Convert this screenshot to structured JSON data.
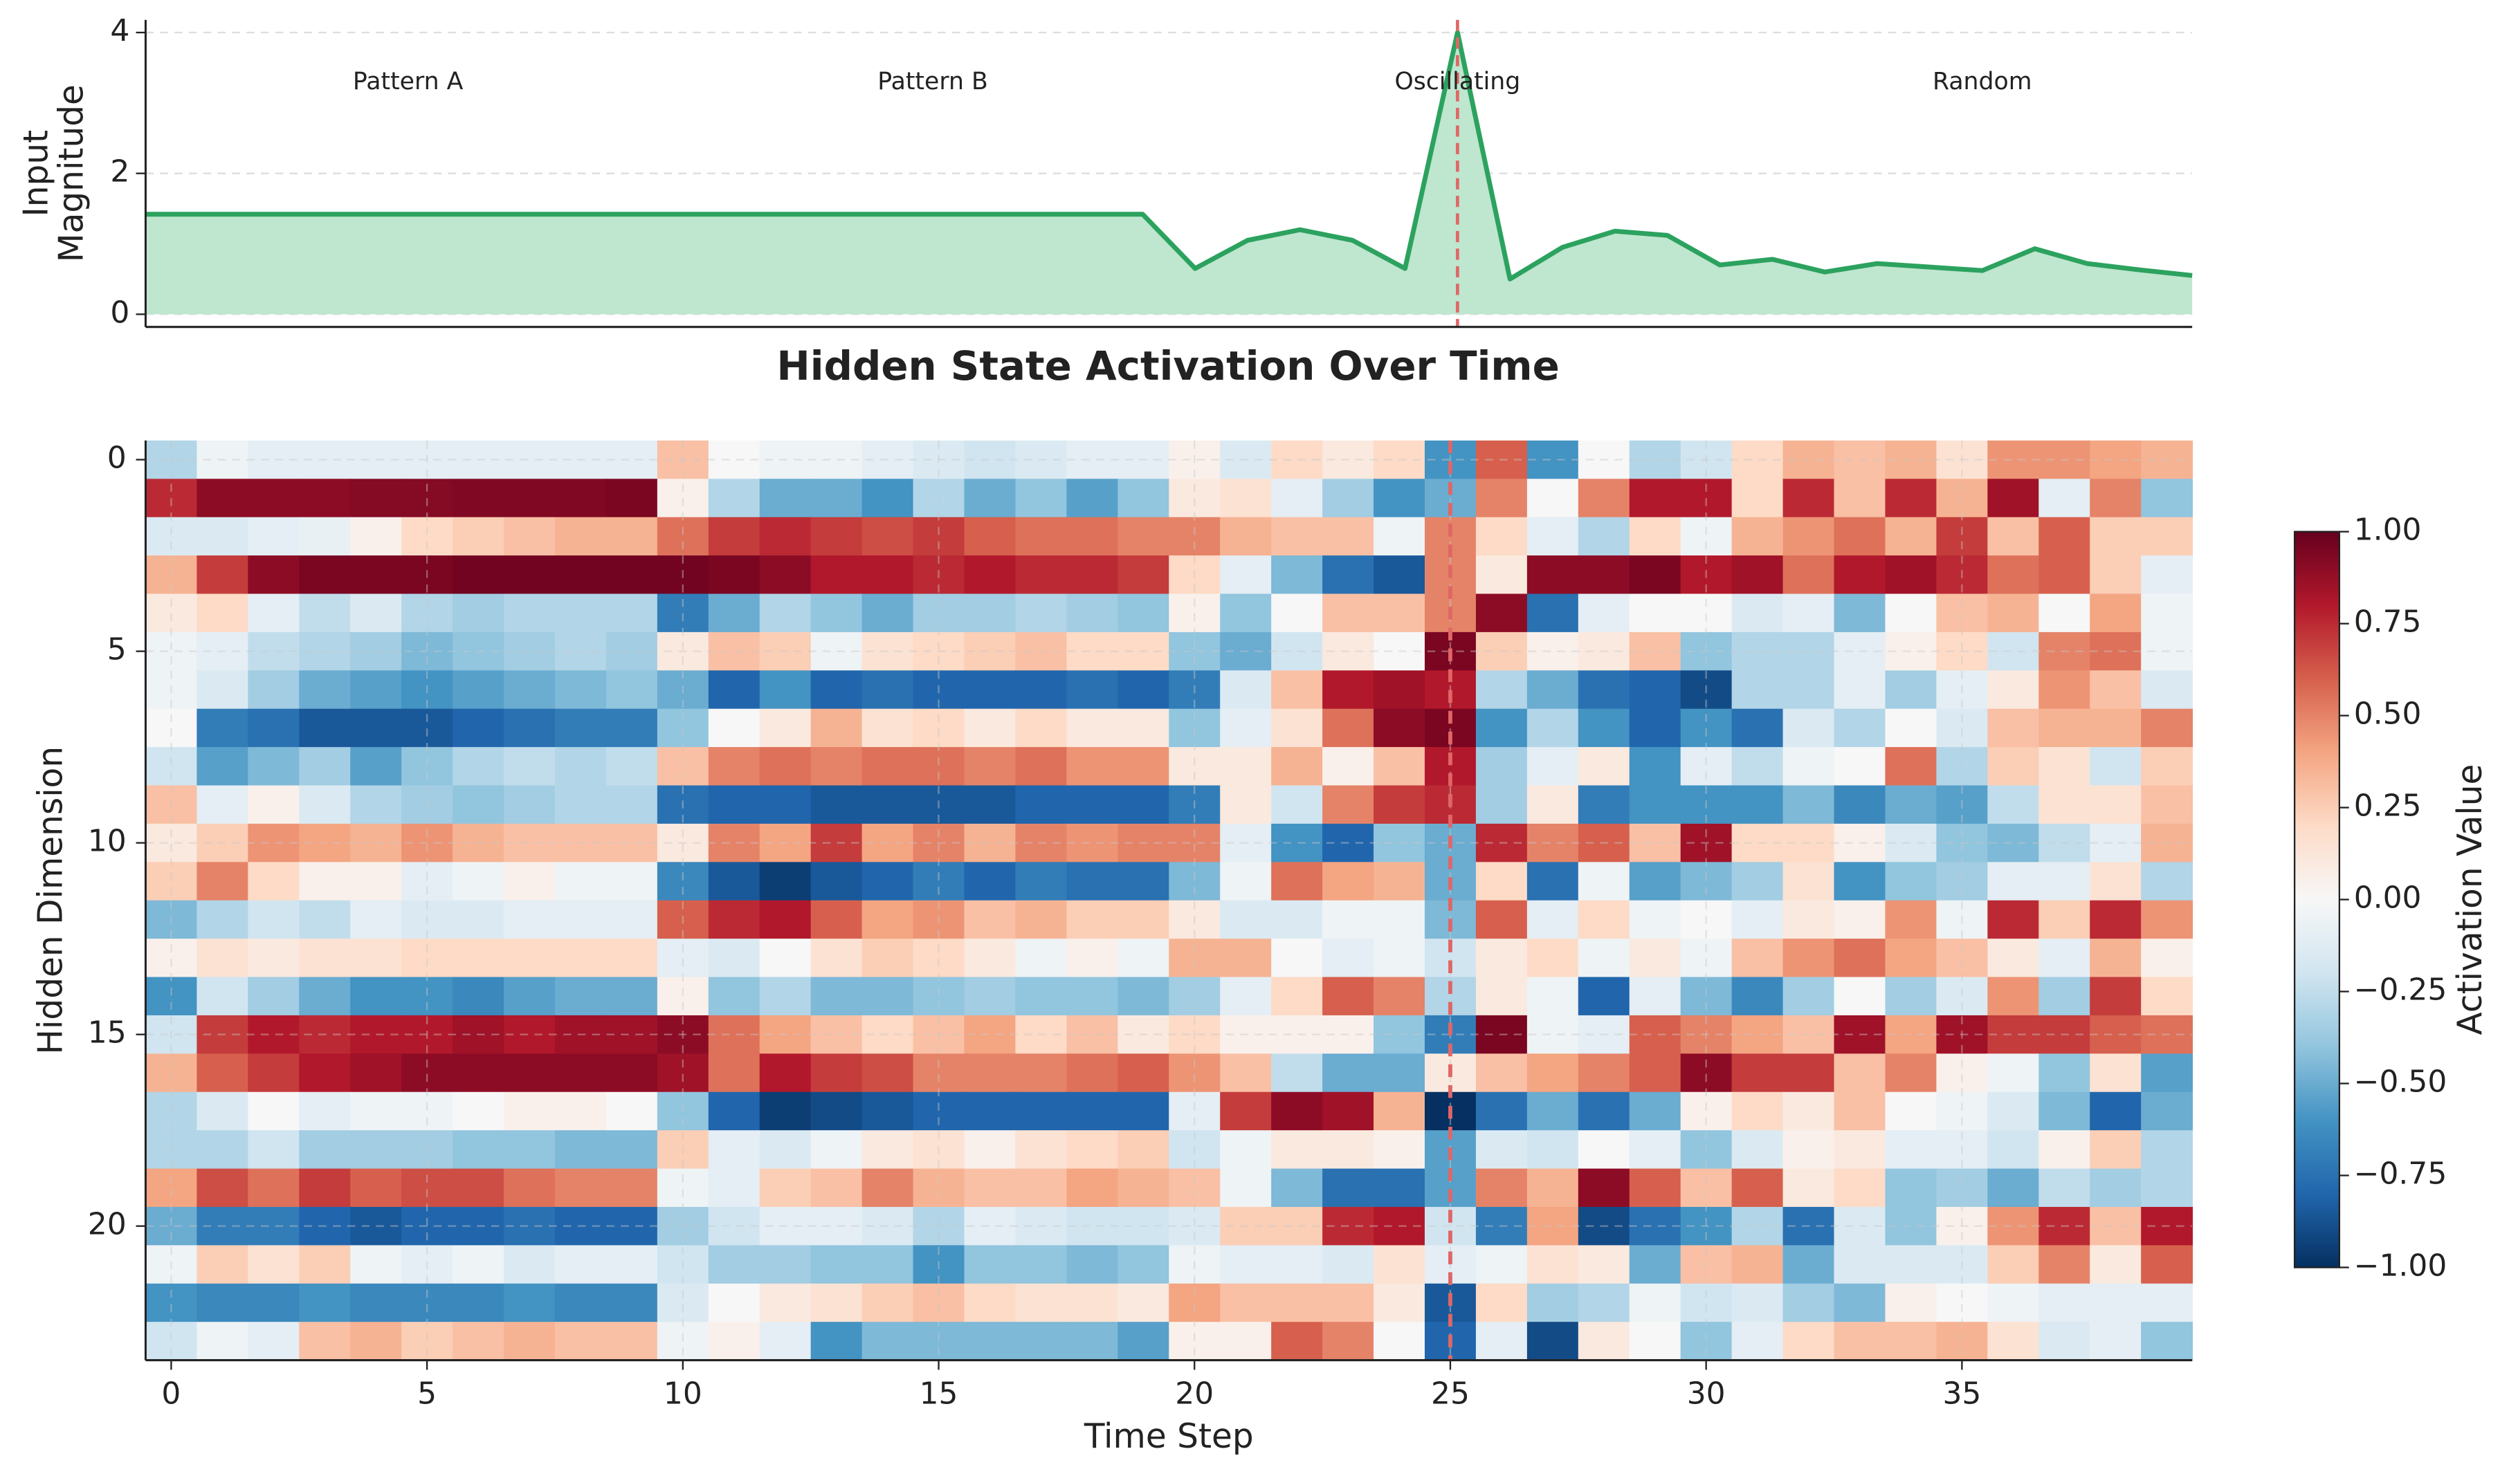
{
  "chart_data": [
    {
      "type": "line",
      "ylabel": [
        "Input",
        "Magnitude"
      ],
      "x": [
        0,
        1,
        2,
        3,
        4,
        5,
        6,
        7,
        8,
        9,
        10,
        11,
        12,
        13,
        14,
        15,
        16,
        17,
        18,
        19,
        20,
        21,
        22,
        23,
        24,
        25,
        26,
        27,
        28,
        29,
        30,
        31,
        32,
        33,
        34,
        35,
        36,
        37,
        38,
        39
      ],
      "values": [
        1.42,
        1.42,
        1.42,
        1.42,
        1.42,
        1.42,
        1.42,
        1.42,
        1.42,
        1.42,
        1.42,
        1.42,
        1.42,
        1.42,
        1.42,
        1.42,
        1.42,
        1.42,
        1.42,
        1.42,
        0.65,
        1.05,
        1.2,
        1.05,
        0.65,
        4.0,
        0.5,
        0.95,
        1.18,
        1.12,
        0.7,
        0.78,
        0.6,
        0.72,
        0.67,
        0.62,
        0.93,
        0.72,
        0.63,
        0.55
      ],
      "color": "#2ca25f",
      "fill_color": "#bfe6cf",
      "xlim": [
        0,
        39
      ],
      "ylim": [
        -0.18,
        4.18
      ],
      "yticks": [
        0,
        2,
        4
      ],
      "grid": true,
      "vline": 25,
      "vline_color": "#e06666",
      "annotations": [
        {
          "text": "Pattern A",
          "x": 5
        },
        {
          "text": "Pattern B",
          "x": 15
        },
        {
          "text": "Oscillating",
          "x": 25
        },
        {
          "text": "Random",
          "x": 35
        }
      ]
    },
    {
      "type": "heatmap",
      "title": "Hidden State Activation Over Time",
      "xlabel": "Time Step",
      "ylabel": "Hidden Dimension",
      "colorbar_label": "Activation Value",
      "xlim": [
        -0.5,
        39.5
      ],
      "ylim": [
        23.5,
        -0.5
      ],
      "xticks": [
        0,
        5,
        10,
        15,
        20,
        25,
        30,
        35
      ],
      "yticks": [
        0,
        5,
        10,
        15,
        20
      ],
      "grid": true,
      "vline": 25,
      "vline_color": "#e06666",
      "clim": [
        -1,
        1
      ],
      "cticks": [
        {
          "value": -1,
          "label": "−1.00"
        },
        {
          "value": -0.75,
          "label": "−0.75"
        },
        {
          "value": -0.5,
          "label": "−0.50"
        },
        {
          "value": -0.25,
          "label": "−0.25"
        },
        {
          "value": 0,
          "label": "0.00"
        },
        {
          "value": 0.25,
          "label": "0.25"
        },
        {
          "value": 0.5,
          "label": "0.50"
        },
        {
          "value": 0.75,
          "label": "0.75"
        },
        {
          "value": 1,
          "label": "1.00"
        }
      ],
      "colormap": [
        "#053061",
        "#2166ac",
        "#4393c3",
        "#92c5de",
        "#d1e5f0",
        "#f7f7f7",
        "#fddbc7",
        "#f4a582",
        "#d6604d",
        "#b2182b",
        "#67001f"
      ],
      "values": [
        [
          -0.3,
          -0.05,
          -0.1,
          -0.1,
          -0.1,
          -0.1,
          -0.1,
          -0.1,
          -0.1,
          -0.1,
          0.3,
          0.0,
          -0.05,
          -0.05,
          -0.1,
          -0.15,
          -0.2,
          -0.15,
          -0.1,
          -0.1,
          0.05,
          -0.15,
          0.2,
          0.1,
          0.2,
          -0.6,
          0.6,
          -0.6,
          0.0,
          -0.3,
          -0.2,
          0.2,
          0.35,
          0.3,
          0.35,
          0.15,
          0.45,
          0.45,
          0.4,
          0.35
        ],
        [
          0.75,
          0.9,
          0.9,
          0.9,
          0.92,
          0.92,
          0.93,
          0.93,
          0.93,
          0.95,
          0.05,
          -0.3,
          -0.5,
          -0.5,
          -0.6,
          -0.3,
          -0.5,
          -0.4,
          -0.55,
          -0.4,
          0.1,
          0.15,
          -0.1,
          -0.35,
          -0.6,
          -0.5,
          0.5,
          0.0,
          0.5,
          0.8,
          0.8,
          0.2,
          0.75,
          0.3,
          0.75,
          0.35,
          0.85,
          -0.1,
          0.5,
          -0.4
        ],
        [
          -0.15,
          -0.15,
          -0.1,
          -0.08,
          0.05,
          0.2,
          0.25,
          0.3,
          0.35,
          0.35,
          0.55,
          0.7,
          0.75,
          0.7,
          0.65,
          0.7,
          0.6,
          0.55,
          0.55,
          0.5,
          0.5,
          0.35,
          0.3,
          0.3,
          -0.05,
          0.5,
          0.2,
          -0.1,
          -0.3,
          0.2,
          -0.05,
          0.35,
          0.45,
          0.55,
          0.35,
          0.7,
          0.3,
          0.6,
          0.25,
          0.25
        ],
        [
          0.35,
          0.7,
          0.9,
          0.95,
          0.95,
          0.95,
          0.97,
          0.97,
          0.97,
          0.97,
          0.97,
          0.95,
          0.9,
          0.8,
          0.8,
          0.75,
          0.8,
          0.75,
          0.75,
          0.7,
          0.2,
          -0.1,
          -0.45,
          -0.75,
          -0.85,
          0.5,
          0.1,
          0.9,
          0.9,
          0.95,
          0.8,
          0.85,
          0.55,
          0.8,
          0.85,
          0.75,
          0.55,
          0.6,
          0.25,
          -0.1
        ],
        [
          0.1,
          0.2,
          -0.1,
          -0.25,
          -0.15,
          -0.3,
          -0.35,
          -0.3,
          -0.3,
          -0.3,
          -0.7,
          -0.5,
          -0.3,
          -0.4,
          -0.5,
          -0.35,
          -0.35,
          -0.3,
          -0.35,
          -0.4,
          0.05,
          -0.4,
          0.0,
          0.3,
          0.3,
          0.5,
          0.9,
          -0.75,
          -0.1,
          0.0,
          0.0,
          -0.15,
          -0.1,
          -0.45,
          0.0,
          0.3,
          0.35,
          0.0,
          0.4,
          -0.05
        ],
        [
          -0.05,
          -0.1,
          -0.25,
          -0.3,
          -0.35,
          -0.45,
          -0.4,
          -0.35,
          -0.3,
          -0.35,
          0.1,
          0.3,
          0.25,
          -0.05,
          0.15,
          0.2,
          0.25,
          0.3,
          0.2,
          0.2,
          -0.4,
          -0.5,
          -0.2,
          0.1,
          0.0,
          0.95,
          0.25,
          0.05,
          0.1,
          0.3,
          -0.4,
          -0.3,
          -0.3,
          -0.1,
          0.05,
          0.2,
          -0.2,
          0.5,
          0.55,
          -0.05
        ],
        [
          -0.05,
          -0.15,
          -0.35,
          -0.5,
          -0.55,
          -0.6,
          -0.55,
          -0.5,
          -0.45,
          -0.4,
          -0.5,
          -0.8,
          -0.6,
          -0.8,
          -0.75,
          -0.8,
          -0.8,
          -0.8,
          -0.75,
          -0.8,
          -0.7,
          -0.15,
          0.3,
          0.8,
          0.85,
          0.8,
          -0.3,
          -0.5,
          -0.75,
          -0.8,
          -0.9,
          -0.3,
          -0.3,
          -0.1,
          -0.35,
          -0.1,
          0.1,
          0.45,
          0.3,
          -0.15
        ],
        [
          0.0,
          -0.7,
          -0.75,
          -0.85,
          -0.85,
          -0.85,
          -0.8,
          -0.75,
          -0.7,
          -0.7,
          -0.4,
          0.0,
          0.1,
          0.35,
          0.15,
          0.2,
          0.1,
          0.2,
          0.1,
          0.1,
          -0.4,
          -0.1,
          0.15,
          0.55,
          0.9,
          0.95,
          -0.6,
          -0.3,
          -0.6,
          -0.8,
          -0.6,
          -0.75,
          -0.15,
          -0.3,
          0.0,
          -0.15,
          0.3,
          0.35,
          0.35,
          0.5
        ],
        [
          -0.2,
          -0.55,
          -0.45,
          -0.35,
          -0.55,
          -0.4,
          -0.3,
          -0.25,
          -0.3,
          -0.25,
          0.3,
          0.5,
          0.55,
          0.5,
          0.55,
          0.55,
          0.5,
          0.55,
          0.45,
          0.45,
          0.1,
          0.1,
          0.35,
          0.05,
          0.3,
          0.8,
          -0.35,
          -0.1,
          0.1,
          -0.6,
          -0.1,
          -0.25,
          -0.05,
          0.0,
          0.55,
          -0.3,
          0.25,
          0.15,
          -0.2,
          0.25
        ],
        [
          0.3,
          -0.1,
          0.05,
          -0.15,
          -0.3,
          -0.35,
          -0.4,
          -0.35,
          -0.3,
          -0.3,
          -0.75,
          -0.8,
          -0.8,
          -0.85,
          -0.85,
          -0.85,
          -0.85,
          -0.8,
          -0.8,
          -0.8,
          -0.7,
          0.1,
          -0.2,
          0.5,
          0.7,
          0.75,
          -0.35,
          0.1,
          -0.7,
          -0.6,
          -0.6,
          -0.6,
          -0.45,
          -0.65,
          -0.5,
          -0.55,
          -0.25,
          0.15,
          0.15,
          0.3
        ],
        [
          0.1,
          0.25,
          0.45,
          0.4,
          0.35,
          0.45,
          0.35,
          0.3,
          0.3,
          0.3,
          0.1,
          0.5,
          0.4,
          0.7,
          0.4,
          0.5,
          0.35,
          0.5,
          0.45,
          0.5,
          0.5,
          -0.1,
          -0.6,
          -0.8,
          -0.4,
          -0.5,
          0.75,
          0.5,
          0.6,
          0.3,
          0.85,
          0.2,
          0.2,
          0.05,
          -0.15,
          -0.4,
          -0.45,
          -0.25,
          -0.1,
          0.35
        ],
        [
          0.25,
          0.5,
          0.2,
          0.05,
          0.05,
          -0.1,
          -0.05,
          0.05,
          -0.05,
          -0.05,
          -0.65,
          -0.85,
          -0.95,
          -0.85,
          -0.8,
          -0.7,
          -0.8,
          -0.7,
          -0.75,
          -0.75,
          -0.45,
          -0.05,
          0.55,
          0.4,
          0.35,
          -0.5,
          0.2,
          -0.75,
          -0.05,
          -0.55,
          -0.45,
          -0.35,
          0.15,
          -0.6,
          -0.4,
          -0.35,
          -0.1,
          -0.1,
          0.15,
          -0.3
        ],
        [
          -0.45,
          -0.3,
          -0.2,
          -0.25,
          -0.1,
          -0.15,
          -0.15,
          -0.1,
          -0.1,
          -0.1,
          0.6,
          0.75,
          0.8,
          0.6,
          0.4,
          0.45,
          0.3,
          0.35,
          0.25,
          0.25,
          0.1,
          -0.15,
          -0.15,
          -0.05,
          -0.05,
          -0.45,
          0.6,
          -0.1,
          0.2,
          -0.05,
          0.0,
          -0.1,
          0.1,
          0.05,
          0.45,
          -0.05,
          0.75,
          0.25,
          0.75,
          0.45
        ],
        [
          0.05,
          0.15,
          0.1,
          0.15,
          0.15,
          0.2,
          0.2,
          0.2,
          0.2,
          0.2,
          -0.1,
          -0.15,
          0.0,
          0.15,
          0.25,
          0.2,
          0.1,
          -0.05,
          0.05,
          -0.05,
          0.35,
          0.35,
          0.0,
          -0.1,
          -0.05,
          -0.2,
          0.1,
          0.2,
          -0.05,
          0.1,
          -0.05,
          0.3,
          0.45,
          0.55,
          0.4,
          0.3,
          0.1,
          -0.1,
          0.35,
          0.05
        ],
        [
          -0.6,
          -0.2,
          -0.35,
          -0.5,
          -0.6,
          -0.6,
          -0.65,
          -0.55,
          -0.5,
          -0.5,
          0.05,
          -0.4,
          -0.3,
          -0.45,
          -0.45,
          -0.4,
          -0.35,
          -0.4,
          -0.4,
          -0.45,
          -0.35,
          -0.1,
          0.2,
          0.6,
          0.5,
          -0.3,
          0.1,
          -0.05,
          -0.8,
          -0.1,
          -0.45,
          -0.65,
          -0.35,
          0.0,
          -0.35,
          -0.15,
          0.45,
          -0.35,
          0.7,
          0.2
        ],
        [
          -0.2,
          0.7,
          0.8,
          0.75,
          0.8,
          0.8,
          0.85,
          0.8,
          0.85,
          0.85,
          0.9,
          0.55,
          0.4,
          0.3,
          0.2,
          0.3,
          0.4,
          0.2,
          0.3,
          0.1,
          0.2,
          0.05,
          0.05,
          0.05,
          -0.4,
          -0.7,
          0.95,
          -0.05,
          -0.1,
          0.6,
          0.5,
          0.4,
          0.3,
          0.85,
          0.4,
          0.85,
          0.7,
          0.7,
          0.6,
          0.55
        ],
        [
          0.35,
          0.6,
          0.7,
          0.8,
          0.85,
          0.9,
          0.9,
          0.9,
          0.9,
          0.9,
          0.85,
          0.55,
          0.8,
          0.7,
          0.65,
          0.5,
          0.5,
          0.5,
          0.55,
          0.6,
          0.45,
          0.3,
          -0.25,
          -0.5,
          -0.5,
          0.1,
          0.3,
          0.4,
          0.5,
          0.6,
          0.9,
          0.7,
          0.7,
          0.3,
          0.5,
          0.05,
          -0.05,
          -0.4,
          0.15,
          -0.55
        ],
        [
          -0.3,
          -0.15,
          0.0,
          -0.1,
          -0.05,
          -0.05,
          0.0,
          0.05,
          0.05,
          0.0,
          -0.4,
          -0.8,
          -0.95,
          -0.9,
          -0.85,
          -0.8,
          -0.8,
          -0.8,
          -0.8,
          -0.8,
          -0.1,
          0.7,
          0.9,
          0.85,
          0.35,
          -1.0,
          -0.75,
          -0.5,
          -0.75,
          -0.5,
          0.05,
          0.2,
          0.1,
          0.3,
          0.0,
          -0.05,
          -0.15,
          -0.45,
          -0.8,
          -0.5
        ],
        [
          -0.3,
          -0.3,
          -0.2,
          -0.35,
          -0.35,
          -0.35,
          -0.4,
          -0.4,
          -0.45,
          -0.45,
          0.25,
          -0.1,
          -0.15,
          -0.05,
          0.1,
          0.15,
          0.05,
          0.15,
          0.2,
          0.25,
          -0.2,
          -0.05,
          0.1,
          0.1,
          0.05,
          -0.55,
          -0.15,
          -0.2,
          0.0,
          -0.1,
          -0.4,
          -0.15,
          0.05,
          0.1,
          -0.1,
          -0.1,
          -0.2,
          0.05,
          0.25,
          -0.3
        ],
        [
          0.4,
          0.65,
          0.55,
          0.7,
          0.6,
          0.65,
          0.65,
          0.55,
          0.5,
          0.5,
          -0.05,
          -0.1,
          0.25,
          0.3,
          0.5,
          0.35,
          0.3,
          0.3,
          0.4,
          0.35,
          0.3,
          -0.05,
          -0.45,
          -0.75,
          -0.75,
          -0.55,
          0.5,
          0.35,
          0.9,
          0.6,
          0.3,
          0.6,
          0.1,
          0.2,
          -0.4,
          -0.35,
          -0.5,
          -0.25,
          -0.35,
          -0.3
        ],
        [
          -0.5,
          -0.7,
          -0.7,
          -0.8,
          -0.85,
          -0.8,
          -0.8,
          -0.75,
          -0.8,
          -0.8,
          -0.35,
          -0.2,
          -0.1,
          -0.1,
          -0.15,
          -0.3,
          -0.1,
          -0.15,
          -0.2,
          -0.2,
          -0.15,
          0.25,
          0.25,
          0.75,
          0.8,
          -0.2,
          -0.7,
          0.4,
          -0.9,
          -0.75,
          -0.6,
          -0.3,
          -0.75,
          -0.15,
          -0.4,
          0.05,
          0.45,
          0.75,
          0.3,
          0.8
        ],
        [
          -0.05,
          0.25,
          0.15,
          0.25,
          -0.05,
          -0.1,
          -0.05,
          -0.15,
          -0.1,
          -0.1,
          -0.2,
          -0.35,
          -0.35,
          -0.4,
          -0.4,
          -0.6,
          -0.4,
          -0.4,
          -0.45,
          -0.4,
          -0.05,
          -0.1,
          -0.1,
          -0.15,
          0.15,
          -0.1,
          -0.05,
          0.15,
          0.1,
          -0.5,
          0.3,
          0.35,
          -0.5,
          -0.15,
          -0.15,
          -0.15,
          0.25,
          0.5,
          0.1,
          0.6
        ],
        [
          -0.6,
          -0.65,
          -0.65,
          -0.6,
          -0.65,
          -0.65,
          -0.65,
          -0.6,
          -0.65,
          -0.65,
          -0.15,
          0.0,
          0.1,
          0.15,
          0.25,
          0.3,
          0.2,
          0.15,
          0.15,
          0.1,
          0.4,
          0.3,
          0.3,
          0.3,
          0.1,
          -0.85,
          0.2,
          -0.35,
          -0.3,
          -0.05,
          -0.2,
          -0.15,
          -0.35,
          -0.45,
          0.05,
          0.0,
          -0.05,
          -0.1,
          -0.1,
          -0.1
        ],
        [
          -0.2,
          -0.05,
          -0.1,
          0.3,
          0.35,
          0.25,
          0.3,
          0.35,
          0.3,
          0.3,
          -0.05,
          0.05,
          -0.1,
          -0.6,
          -0.45,
          -0.45,
          -0.45,
          -0.45,
          -0.45,
          -0.55,
          0.05,
          0.05,
          0.6,
          0.5,
          0.0,
          -0.8,
          -0.1,
          -0.9,
          0.1,
          0.0,
          -0.4,
          -0.1,
          0.2,
          0.3,
          0.3,
          0.35,
          0.15,
          -0.15,
          -0.1,
          -0.4
        ]
      ]
    }
  ]
}
